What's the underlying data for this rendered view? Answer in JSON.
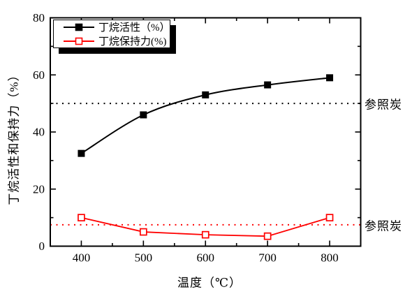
{
  "figure": {
    "background": "#ffffff",
    "frame_color": "#000000"
  },
  "legend": {
    "items": [
      {
        "label": "丁烷活性（%）",
        "color": "#000000",
        "marker": "filled-square"
      },
      {
        "label": "丁烷保持力(%)",
        "color": "#ff0000",
        "marker": "open-square"
      }
    ]
  },
  "chart_data": {
    "type": "line",
    "title": "",
    "xlabel": "温度（℃）",
    "ylabel": "丁烷活性和保持力（%）",
    "x": [
      400,
      500,
      600,
      700,
      800
    ],
    "series": [
      {
        "name": "丁烷活性（%）",
        "color": "#000000",
        "marker": "filled-square",
        "smooth": true,
        "values": [
          32.5,
          46,
          53,
          56.5,
          59
        ]
      },
      {
        "name": "丁烷保持力(%)",
        "color": "#ff0000",
        "marker": "open-square",
        "smooth": false,
        "values": [
          10,
          5,
          4,
          3.5,
          10
        ]
      }
    ],
    "reference_lines": [
      {
        "value": 50,
        "color": "#000000",
        "style": "dotted",
        "label": "参照炭"
      },
      {
        "value": 7.5,
        "color": "#ff0000",
        "style": "dotted",
        "label": "参照炭"
      }
    ],
    "xlim": [
      350,
      850
    ],
    "ylim": [
      0,
      80
    ],
    "x_major_ticks": [
      400,
      500,
      600,
      700,
      800
    ],
    "x_minor_ticks": [
      450,
      550,
      650,
      750
    ],
    "y_major_ticks": [
      0,
      20,
      40,
      60,
      80
    ],
    "y_minor_ticks": [
      10,
      30,
      50,
      70
    ],
    "grid": false,
    "legend_position": "top-left"
  }
}
